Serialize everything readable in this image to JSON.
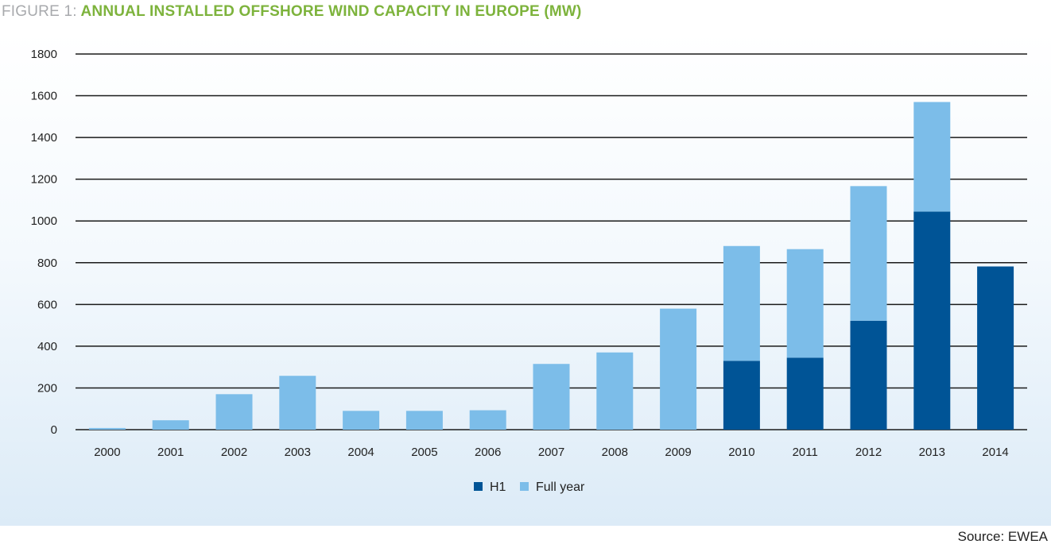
{
  "title": {
    "figure_label": "FIGURE 1:",
    "text": "ANNUAL INSTALLED OFFSHORE WIND CAPACITY IN EUROPE (MW)"
  },
  "source": "Source: EWEA",
  "colors": {
    "h1": "#005496",
    "full_year": "#7cbde9",
    "title_label": "#a8aaad",
    "title_text": "#7db33c",
    "gridline": "#1a1a1a"
  },
  "chart_data": {
    "type": "bar",
    "stacked": true,
    "categories": [
      "2000",
      "2001",
      "2002",
      "2003",
      "2004",
      "2005",
      "2006",
      "2007",
      "2008",
      "2009",
      "2010",
      "2011",
      "2012",
      "2013",
      "2014"
    ],
    "series": [
      {
        "name": "H1",
        "color": "#005496",
        "values": [
          0,
          0,
          0,
          0,
          0,
          0,
          0,
          0,
          0,
          0,
          330,
          345,
          522,
          1045,
          782
        ]
      },
      {
        "name": "Full year",
        "color": "#7cbde9",
        "values": [
          8,
          45,
          170,
          258,
          90,
          90,
          93,
          315,
          370,
          580,
          550,
          520,
          645,
          525,
          0
        ]
      }
    ],
    "ylim": [
      0,
      1800
    ],
    "yticks": [
      0,
      200,
      400,
      600,
      800,
      1000,
      1200,
      1400,
      1600,
      1800
    ],
    "grid": true,
    "legend_position": "bottom-center",
    "xlabel": "",
    "ylabel": ""
  }
}
